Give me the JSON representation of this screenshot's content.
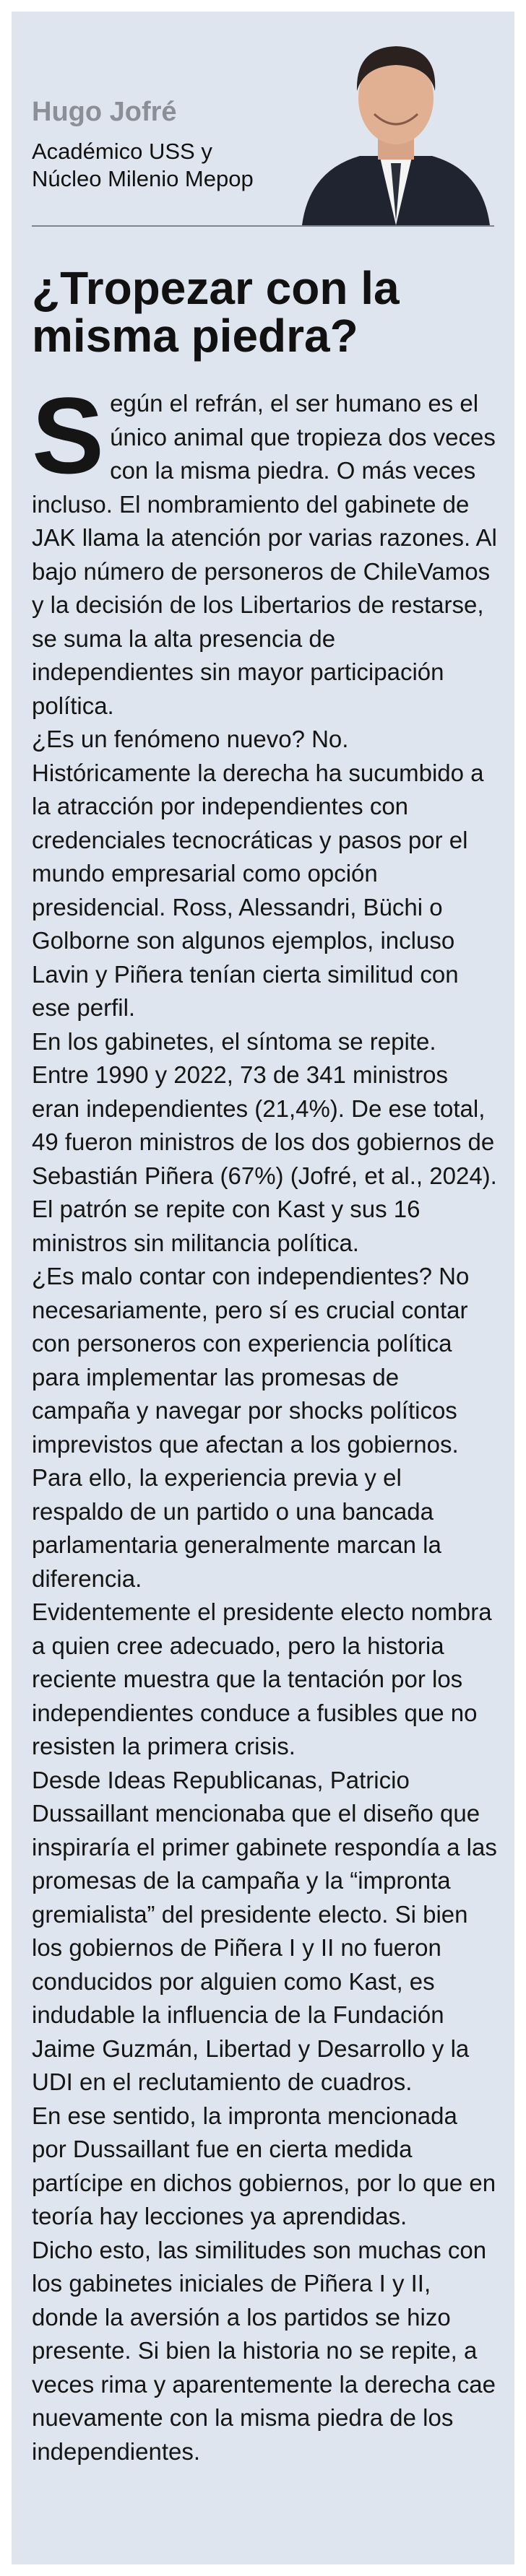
{
  "header": {
    "author": "Hugo Jofré",
    "affiliation": [
      "Académico USS y",
      "Núcleo Milenio Mepop"
    ]
  },
  "title": "¿Tropezar con la misma piedra?",
  "body": [
    "Según el refrán, el ser humano es el único animal que tropieza dos veces con la misma piedra. O más veces incluso. El nombramiento del gabinete de JAK llama la atención por varias razones. Al bajo número de personeros de ChileVamos y la decisión de los Libertarios de restarse, se suma la alta presencia de independientes sin mayor participación política.",
    "¿Es un fenómeno nuevo? No. Históricamente la derecha ha sucumbido a la atracción por independientes con credenciales tecnocráticas y pasos por el mundo empresarial como opción presidencial. Ross, Alessandri, Büchi o Golborne son algunos ejemplos, incluso Lavin y Piñera tenían cierta similitud con ese perfil.",
    "En los gabinetes, el síntoma se repite. Entre 1990 y 2022, 73 de 341 ministros eran independientes (21,4%). De ese total, 49 fueron ministros de los dos gobiernos de Sebastián Piñera (67%) (Jofré, et al., 2024). El patrón se repite con Kast y sus 16 ministros sin militancia política.",
    "¿Es malo contar con independientes? No necesariamente, pero sí es crucial contar con personeros con experiencia política para implementar las promesas de campaña y navegar por shocks políticos imprevistos que afectan a los gobiernos.",
    "Para ello, la experiencia previa y el respaldo de un partido o una bancada parlamentaria generalmente marcan la diferencia.",
    "Evidentemente el presidente electo nombra a quien cree adecuado, pero la historia reciente muestra que la tentación por los independientes conduce a fusibles que no resisten la primera crisis.",
    "Desde Ideas Republicanas, Patricio Dussaillant mencionaba que el diseño que inspiraría el primer gabinete respondía a las promesas de la campaña y la “impronta gremialista” del presidente electo. Si bien los gobiernos de Piñera I y II no fueron conducidos por alguien como Kast, es indudable la influencia de la Fundación Jaime Guzmán, Libertad y Desarrollo y la UDI en el reclutamiento de cuadros.",
    "En ese sentido, la impronta mencionada por Dussaillant fue en cierta medida partícipe en dichos gobiernos, por lo que en teoría hay lecciones ya aprendidas.",
    "Dicho esto, las similitudes son muchas con los gabinetes iniciales de Piñera I y II, donde la aversión a los partidos se hizo presente. Si bien la historia no se repite, a veces rima y aparentemente la derecha cae nuevamente con la misma piedra de los independientes."
  ]
}
